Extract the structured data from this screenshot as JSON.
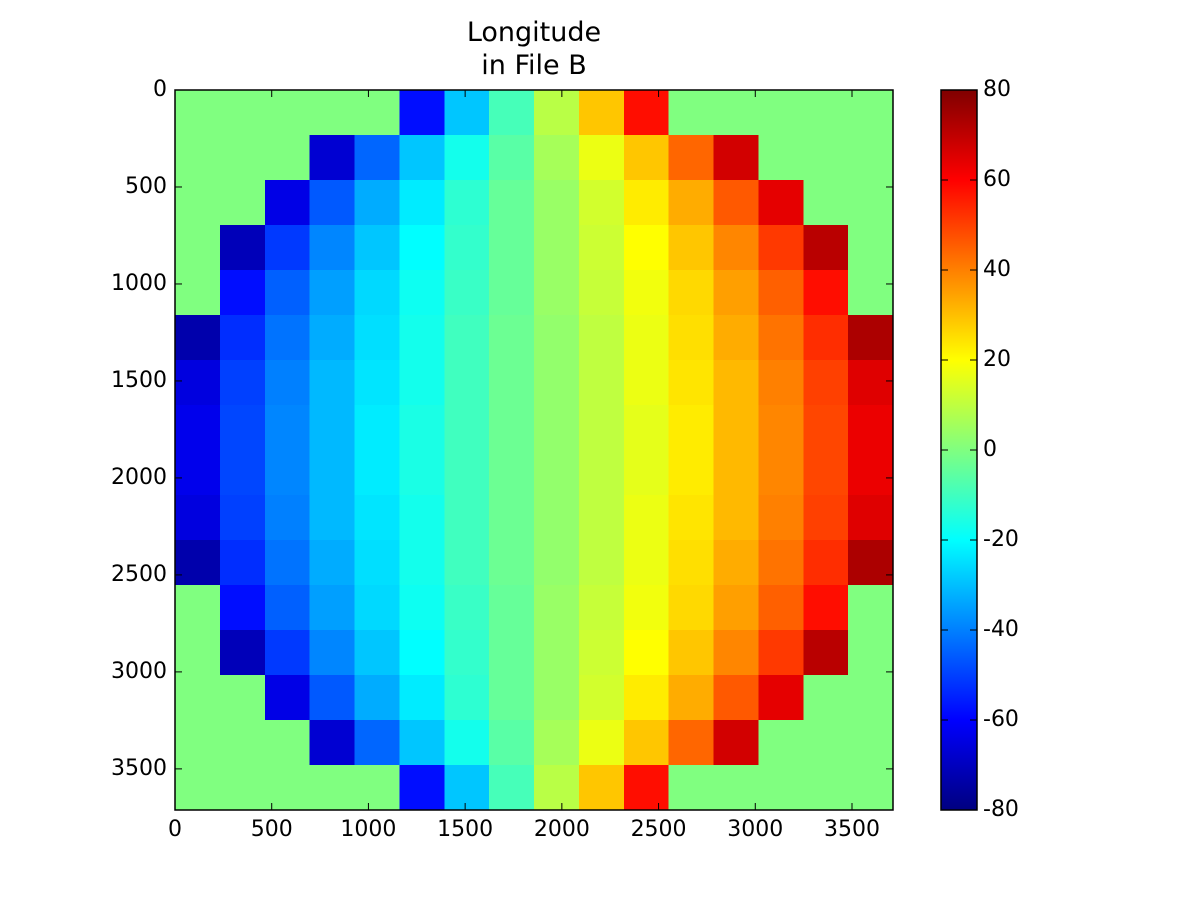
{
  "chart_data": {
    "type": "image",
    "title": "Longitude\nin File B",
    "xlim": [
      0,
      3712
    ],
    "ylim": [
      3712,
      0
    ],
    "xticks": [
      0,
      500,
      1000,
      1500,
      2000,
      2500,
      3000,
      3500
    ],
    "yticks": [
      0,
      500,
      1000,
      1500,
      2000,
      2500,
      3000,
      3500
    ],
    "colormap": "jet",
    "colorbar": {
      "lim": [
        -80,
        80
      ],
      "ticks": [
        -80,
        -60,
        -40,
        -20,
        0,
        20,
        40,
        60,
        80
      ]
    },
    "values": [
      [
        0,
        0,
        0,
        0,
        0,
        -58,
        -29,
        -9,
        9,
        29,
        58,
        0,
        0,
        0,
        0,
        0
      ],
      [
        0,
        0,
        0,
        -67,
        -44,
        -29,
        -17,
        -6,
        6,
        17,
        29,
        44,
        67,
        0,
        0,
        0
      ],
      [
        0,
        0,
        -64,
        -46,
        -33,
        -23,
        -13,
        -4,
        4,
        13,
        23,
        33,
        46,
        64,
        0,
        0
      ],
      [
        0,
        -71,
        -51,
        -39,
        -29,
        -20,
        -12,
        -4,
        4,
        12,
        20,
        29,
        39,
        51,
        71,
        0
      ],
      [
        0,
        -58,
        -45,
        -35,
        -26,
        -18,
        -11,
        -4,
        4,
        11,
        18,
        26,
        35,
        45,
        58,
        0
      ],
      [
        -73,
        -53,
        -42,
        -33,
        -25,
        -17,
        -10,
        -3,
        3,
        10,
        17,
        25,
        33,
        42,
        53,
        73
      ],
      [
        -65,
        -50,
        -40,
        -31,
        -24,
        -17,
        -10,
        -3,
        3,
        10,
        17,
        24,
        31,
        40,
        50,
        65
      ],
      [
        -63,
        -49,
        -39,
        -31,
        -23,
        -16,
        -10,
        -3,
        3,
        10,
        16,
        23,
        31,
        39,
        49,
        63
      ],
      [
        -63,
        -49,
        -39,
        -31,
        -23,
        -16,
        -10,
        -3,
        3,
        10,
        16,
        23,
        31,
        39,
        49,
        63
      ],
      [
        -65,
        -50,
        -40,
        -31,
        -24,
        -17,
        -10,
        -3,
        3,
        10,
        17,
        24,
        31,
        40,
        50,
        65
      ],
      [
        -73,
        -53,
        -42,
        -33,
        -25,
        -17,
        -10,
        -3,
        3,
        10,
        17,
        25,
        33,
        42,
        53,
        73
      ],
      [
        0,
        -58,
        -45,
        -35,
        -26,
        -18,
        -11,
        -4,
        4,
        11,
        18,
        26,
        35,
        45,
        58,
        0
      ],
      [
        0,
        -71,
        -51,
        -39,
        -29,
        -20,
        -12,
        -4,
        4,
        12,
        20,
        29,
        39,
        51,
        71,
        0
      ],
      [
        0,
        0,
        -64,
        -46,
        -33,
        -23,
        -13,
        -4,
        4,
        13,
        23,
        33,
        46,
        64,
        0,
        0
      ],
      [
        0,
        0,
        0,
        -67,
        -44,
        -29,
        -17,
        -6,
        6,
        17,
        29,
        44,
        67,
        0,
        0,
        0
      ],
      [
        0,
        0,
        0,
        0,
        0,
        -58,
        -29,
        -9,
        9,
        29,
        58,
        0,
        0,
        0,
        0,
        0
      ]
    ]
  }
}
